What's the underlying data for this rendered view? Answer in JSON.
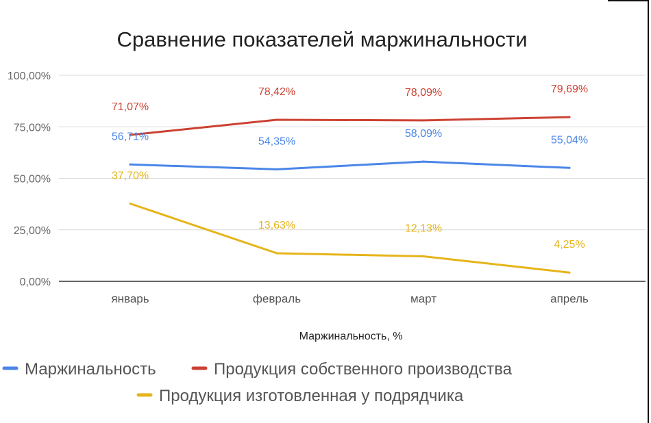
{
  "chart_data": {
    "type": "line",
    "title": "Сравнение показателей маржинальности",
    "xlabel": "Маржинальность, %",
    "ylabel": "",
    "ylim": [
      0,
      100
    ],
    "y_ticks": [
      0,
      25,
      50,
      75,
      100
    ],
    "y_tick_labels": [
      "0,00%",
      "25,00%",
      "50,00%",
      "75,00%",
      "100,00%"
    ],
    "categories": [
      "январь",
      "февраль",
      "март",
      "апрель"
    ],
    "grid": true,
    "legend_position": "bottom",
    "series": [
      {
        "name": "Маржинальность",
        "color": "#4a86e8",
        "values": [
          56.71,
          54.35,
          58.09,
          55.04
        ],
        "labels": [
          "56,71%",
          "54,35%",
          "58,09%",
          "55,04%"
        ]
      },
      {
        "name": "Продукция собственного производства",
        "color": "#cc4133",
        "values": [
          71.07,
          78.42,
          78.09,
          79.69
        ],
        "labels": [
          "71,07%",
          "78,42%",
          "78,09%",
          "79,69%"
        ]
      },
      {
        "name": "Продукция изготовленная у подрядчика",
        "color": "#e6b419",
        "values": [
          37.7,
          13.63,
          12.13,
          4.25
        ],
        "labels": [
          "37,70%",
          "13,63%",
          "12,13%",
          "4,25%"
        ]
      }
    ]
  }
}
